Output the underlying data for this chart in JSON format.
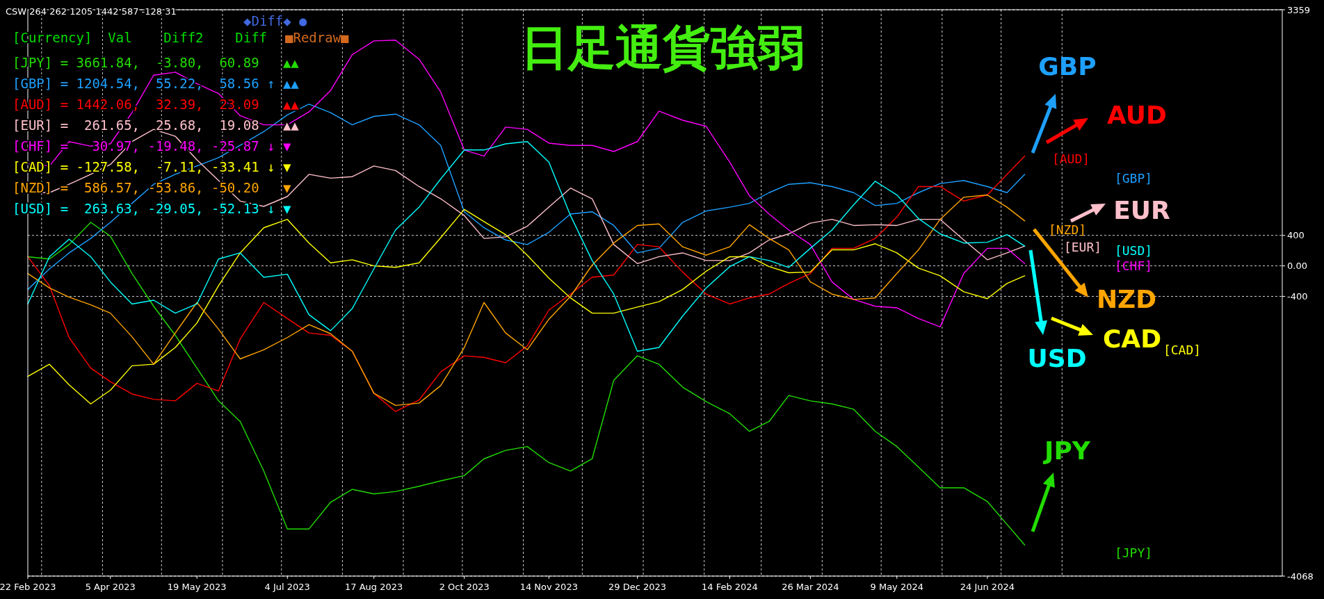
{
  "chart_data": {
    "type": "line",
    "title": "日足通貨強弱",
    "x": [
      "2023-02-22",
      "2023-03-05",
      "2023-03-15",
      "2023-03-26",
      "2023-04-05",
      "2023-04-16",
      "2023-04-27",
      "2023-05-08",
      "2023-05-19",
      "2023-05-30",
      "2023-06-10",
      "2023-06-22",
      "2023-07-04",
      "2023-07-15",
      "2023-07-26",
      "2023-08-06",
      "2023-08-17",
      "2023-08-28",
      "2023-09-09",
      "2023-09-20",
      "2023-10-02",
      "2023-10-12",
      "2023-10-23",
      "2023-11-03",
      "2023-11-14",
      "2023-11-25",
      "2023-12-06",
      "2023-12-17",
      "2023-12-29",
      "2024-01-09",
      "2024-01-21",
      "2024-02-02",
      "2024-02-14",
      "2024-02-24",
      "2024-03-05",
      "2024-03-15",
      "2024-03-26",
      "2024-04-06",
      "2024-04-17",
      "2024-04-28",
      "2024-05-09",
      "2024-05-20",
      "2024-05-31",
      "2024-06-12",
      "2024-06-24",
      "2024-07-04",
      "2024-07-13"
    ],
    "series": [
      {
        "name": "JPY",
        "color": "#22dd00",
        "values": [
          120,
          90,
          280,
          570,
          390,
          -100,
          -530,
          -910,
          -1340,
          -1770,
          -2040,
          -2690,
          -3450,
          -3450,
          -3100,
          -2930,
          -2990,
          -2960,
          -2890,
          -2820,
          -2750,
          -2530,
          -2420,
          -2370,
          -2580,
          -2690,
          -2530,
          -1500,
          -1180,
          -1290,
          -1590,
          -1780,
          -1940,
          -2170,
          -2040,
          -1700,
          -1770,
          -1810,
          -1880,
          -2170,
          -2370,
          -2640,
          -2910,
          -2910,
          -3090,
          -3390,
          -3660
        ]
      },
      {
        "name": "GBP",
        "color": "#1ea0ff",
        "values": [
          -310,
          -40,
          170,
          360,
          570,
          820,
          1070,
          1200,
          1310,
          1420,
          1580,
          1760,
          1980,
          2120,
          2010,
          1850,
          1960,
          1990,
          1850,
          1580,
          710,
          500,
          340,
          280,
          440,
          680,
          710,
          530,
          170,
          230,
          570,
          720,
          770,
          820,
          960,
          1070,
          1090,
          1040,
          960,
          790,
          820,
          960,
          1080,
          1120,
          1040,
          960,
          1200
        ]
      },
      {
        "name": "AUD",
        "color": "#ff0000",
        "values": [
          120,
          -260,
          -940,
          -1340,
          -1520,
          -1680,
          -1750,
          -1770,
          -1540,
          -1640,
          -960,
          -480,
          -690,
          -880,
          -910,
          -1120,
          -1670,
          -1910,
          -1760,
          -1390,
          -1180,
          -1200,
          -1270,
          -1050,
          -580,
          -370,
          -150,
          -120,
          280,
          250,
          -80,
          -370,
          -500,
          -420,
          -370,
          -230,
          -100,
          230,
          230,
          360,
          640,
          1040,
          1040,
          850,
          930,
          1200,
          1440
        ]
      },
      {
        "name": "EUR",
        "color": "#ffc0cb",
        "values": [
          960,
          960,
          1070,
          1200,
          1330,
          1630,
          1790,
          1700,
          1390,
          1120,
          850,
          780,
          910,
          1200,
          1150,
          1170,
          1310,
          1250,
          1040,
          880,
          660,
          360,
          380,
          520,
          770,
          1020,
          880,
          280,
          30,
          120,
          170,
          70,
          70,
          170,
          340,
          420,
          560,
          610,
          530,
          540,
          530,
          610,
          610,
          340,
          80,
          170,
          260
        ]
      },
      {
        "color": "#ff00ff",
        "values": [
          1340,
          1310,
          1630,
          1570,
          1600,
          2010,
          2500,
          2540,
          2390,
          2260,
          1970,
          1850,
          1850,
          2020,
          2300,
          2770,
          2950,
          2960,
          2710,
          2280,
          1520,
          1440,
          1820,
          1790,
          1610,
          1580,
          1580,
          1500,
          1630,
          2030,
          1910,
          1830,
          1360,
          920,
          680,
          470,
          280,
          -210,
          -440,
          -530,
          -550,
          -690,
          -800,
          -100,
          230,
          230,
          30
        ]
      },
      {
        "name": "CAD",
        "color": "#ffff00",
        "values": [
          -1450,
          -1290,
          -1560,
          -1810,
          -1630,
          -1310,
          -1290,
          -1070,
          -750,
          -260,
          170,
          500,
          610,
          300,
          40,
          80,
          0,
          -20,
          40,
          370,
          740,
          580,
          410,
          140,
          -160,
          -420,
          -620,
          -620,
          -540,
          -470,
          -310,
          -70,
          120,
          120,
          -10,
          -90,
          -80,
          210,
          210,
          290,
          170,
          -30,
          -130,
          -340,
          -430,
          -230,
          -130
        ]
      },
      {
        "name": "NZD",
        "color": "#ffa500",
        "values": [
          -100,
          -290,
          -410,
          -510,
          -620,
          -930,
          -1290,
          -880,
          -480,
          -830,
          -1220,
          -1100,
          -940,
          -770,
          -890,
          -1120,
          -1670,
          -1830,
          -1800,
          -1570,
          -1070,
          -480,
          -880,
          -1100,
          -700,
          -400,
          10,
          300,
          530,
          550,
          250,
          140,
          250,
          540,
          360,
          210,
          -210,
          -370,
          -440,
          -420,
          -100,
          210,
          610,
          900,
          930,
          770,
          590
        ]
      },
      {
        "name": "USD",
        "color": "#00ffff",
        "values": [
          -500,
          120,
          350,
          120,
          -210,
          -500,
          -450,
          -620,
          -500,
          90,
          170,
          -150,
          -110,
          -640,
          -850,
          -560,
          -40,
          470,
          770,
          1140,
          1520,
          1520,
          1600,
          1630,
          1360,
          660,
          70,
          -370,
          -1120,
          -1070,
          -660,
          -290,
          -10,
          120,
          70,
          -20,
          230,
          470,
          800,
          1110,
          930,
          620,
          420,
          300,
          310,
          410,
          260
        ]
      }
    ],
    "xlim": [
      "2023-02-22",
      "2024-11-21"
    ],
    "ylim": [
      -4068,
      3359
    ],
    "xticks": [
      {
        "value": "2023-02-22",
        "label": "22 Feb 2023"
      },
      {
        "value": "2023-04-05",
        "label": "5 Apr 2023"
      },
      {
        "value": "2023-05-19",
        "label": "19 May 2023"
      },
      {
        "value": "2023-07-04",
        "label": "4 Jul 2023"
      },
      {
        "value": "2023-08-17",
        "label": "17 Aug 2023"
      },
      {
        "value": "2023-10-02",
        "label": "2 Oct 2023"
      },
      {
        "value": "2023-11-14",
        "label": "14 Nov 2023"
      },
      {
        "value": "2023-12-29",
        "label": "29 Dec 2023"
      },
      {
        "value": "2024-02-14",
        "label": "14 Feb 2024"
      },
      {
        "value": "2024-03-26",
        "label": "26 Mar 2024"
      },
      {
        "value": "2024-05-09",
        "label": "9 May 2024"
      },
      {
        "value": "2024-06-24",
        "label": "24 Jun 2024"
      }
    ],
    "yticks": [
      -4068,
      -400,
      {
        "value": 0,
        "label": "0.00"
      },
      400,
      3359
    ],
    "grid": "y",
    "legend": "right",
    "ref_lines": [
      {
        "axis": "x",
        "value": "2023-03-01",
        "line_style": "dashed"
      },
      {
        "axis": "x",
        "value": "2023-04-01",
        "line_style": "dashed"
      },
      {
        "axis": "x",
        "value": "2023-05-01",
        "line_style": "dashed"
      },
      {
        "axis": "x",
        "value": "2023-06-01",
        "line_style": "dashed"
      },
      {
        "axis": "x",
        "value": "2023-07-01",
        "line_style": "dashed"
      },
      {
        "axis": "x",
        "value": "2023-08-01",
        "line_style": "dashed"
      },
      {
        "axis": "x",
        "value": "2023-09-01",
        "line_style": "dashed"
      },
      {
        "axis": "x",
        "value": "2023-10-01",
        "line_style": "dashed"
      },
      {
        "axis": "x",
        "value": "2023-11-01",
        "line_style": "dashed"
      },
      {
        "axis": "x",
        "value": "2023-12-01",
        "line_style": "dashed"
      },
      {
        "axis": "x",
        "value": "2024-01-01",
        "line_style": "dashed"
      },
      {
        "axis": "x",
        "value": "2024-02-01",
        "line_style": "dashed"
      },
      {
        "axis": "x",
        "value": "2024-03-01",
        "line_style": "dashed"
      },
      {
        "axis": "x",
        "value": "2024-04-01",
        "line_style": "dashed"
      },
      {
        "axis": "x",
        "value": "2024-05-01",
        "line_style": "dashed"
      },
      {
        "axis": "x",
        "value": "2024-06-01",
        "line_style": "dashed"
      },
      {
        "axis": "x",
        "value": "2024-07-01",
        "line_style": "dashed"
      },
      {
        "axis": "x",
        "value": "2024-08-01",
        "line_style": "dashed"
      }
    ],
    "annotations": [
      "CSW 264 262 1205 1442 587 -128 31",
      "◆Diff◆ ●",
      "■Redraw■",
      "[Currency]  Val    Diff2    Diff",
      "[JPY] = 3661.84,  -3.80,  60.89   ▲▲",
      "[GBP] = 1204.54,  55.22,  58.56 ↑ ▲▲",
      "[AUD] = 1442.06,  32.39,  23.09   ▲▲",
      "[EUR] =  261.65,  25.68,  19.08   ▲▲",
      "[CHF] =   30.97, -19.48, -25.87 ↓ ▼",
      "[CAD] = -127.58,  -7.11, -33.41 ↓ ▼",
      "[NZD] =  586.57, -53.86, -50.20   ▼",
      "[USD] =  263.63, -29.05, -52.13 ↓ ▼",
      "[AUD]",
      "[GBP]",
      "[NZD]",
      "[EUR]",
      "[USD]",
      "[CHF]",
      "[CAD]",
      "[JPY]"
    ]
  }
}
